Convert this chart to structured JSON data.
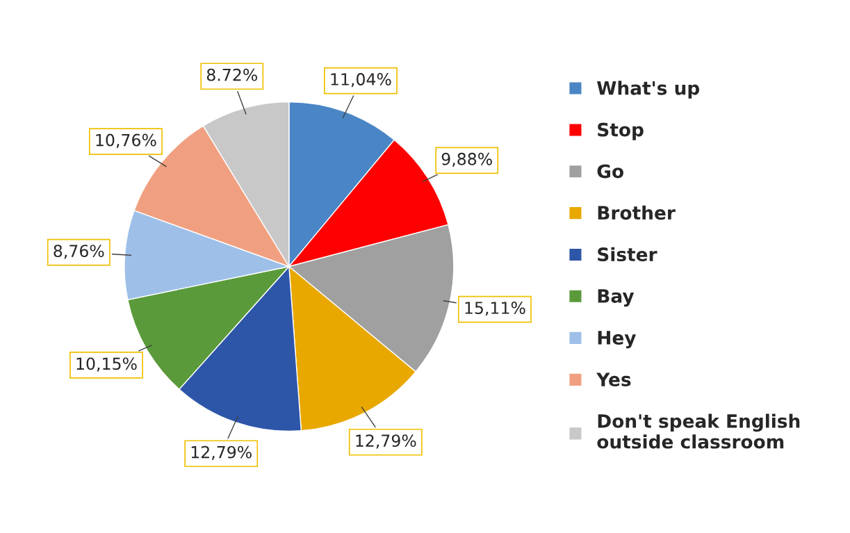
{
  "chart_data": {
    "type": "pie",
    "categories": [
      "What's up",
      "Stop",
      "Go",
      "Brother",
      "Sister",
      "Bay",
      "Hey",
      "Yes",
      "Don't speak English outside classroom"
    ],
    "values": [
      11.04,
      9.88,
      15.11,
      12.79,
      12.79,
      10.15,
      8.76,
      10.76,
      8.72
    ],
    "value_labels": [
      "11,04%",
      "9,88%",
      "15,11%",
      "12,79%",
      "12,79%",
      "10,15%",
      "8,76%",
      "10,76%",
      "8.72%"
    ],
    "colors": [
      "#4a86c5",
      "#ff0000",
      "#a0a0a0",
      "#e8a800",
      "#2e56a8",
      "#5a9a3a",
      "#9ec0e8",
      "#f0a080",
      "#c8c8c8"
    ],
    "legend": "right"
  }
}
